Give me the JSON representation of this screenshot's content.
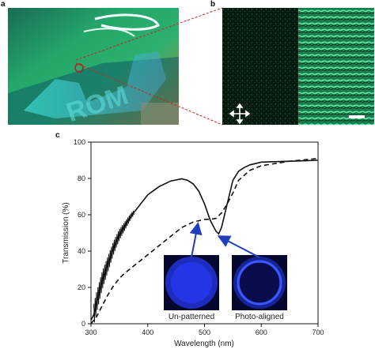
{
  "panels": {
    "a": {
      "letter": "a"
    },
    "b": {
      "letter": "b"
    },
    "c": {
      "letter": "c"
    }
  },
  "colors": {
    "solid_curve": "#111111",
    "dashed_curve": "#111111",
    "arrow": "#1f3fbf",
    "inset_blue": "#2a3cff",
    "inset_dark": "#080c4a",
    "connector": "#d22020"
  },
  "icons": {
    "polarizer": "crossed-arrows-icon",
    "scale_bar": "scale-bar"
  },
  "chart_data": {
    "type": "line",
    "xlabel": "Wavelength (nm)",
    "ylabel": "Transmission (%)",
    "xlim": [
      300,
      700
    ],
    "ylim": [
      0,
      100
    ],
    "xticks": [
      "300",
      "400",
      "500",
      "600",
      "700"
    ],
    "yticks": [
      "0",
      "20",
      "40",
      "60",
      "80",
      "100"
    ],
    "grid": false,
    "series": [
      {
        "style": "solid",
        "x": [
          300,
          305,
          310,
          315,
          320,
          330,
          340,
          350,
          360,
          370,
          380,
          390,
          400,
          420,
          440,
          460,
          470,
          480,
          490,
          500,
          510,
          520,
          525,
          530,
          540,
          550,
          560,
          570,
          580,
          600,
          650,
          700
        ],
        "y": [
          2,
          5,
          12,
          18,
          24,
          33,
          42,
          49,
          54,
          59,
          63,
          67,
          71,
          75.5,
          78.5,
          79.8,
          79,
          77,
          73,
          66,
          57,
          51,
          49.5,
          53,
          66,
          79,
          84,
          86,
          87.5,
          89,
          89.5,
          90
        ]
      },
      {
        "style": "dashed",
        "x": [
          300,
          310,
          320,
          330,
          340,
          350,
          360,
          380,
          400,
          420,
          440,
          460,
          480,
          500,
          510,
          520,
          530,
          540,
          550,
          560,
          580,
          600,
          650,
          700
        ],
        "y": [
          0,
          4,
          10,
          16,
          21,
          25,
          28,
          33,
          38,
          43,
          48,
          53,
          56,
          57.5,
          57.5,
          58,
          61,
          66,
          72,
          79,
          84.5,
          87,
          89.5,
          91
        ]
      }
    ],
    "annotations": [
      {
        "label": "Un-patterned",
        "points_to": [
          488,
          57
        ]
      },
      {
        "label": "Photo-aligned",
        "points_to": [
          522,
          49.5
        ]
      }
    ]
  }
}
